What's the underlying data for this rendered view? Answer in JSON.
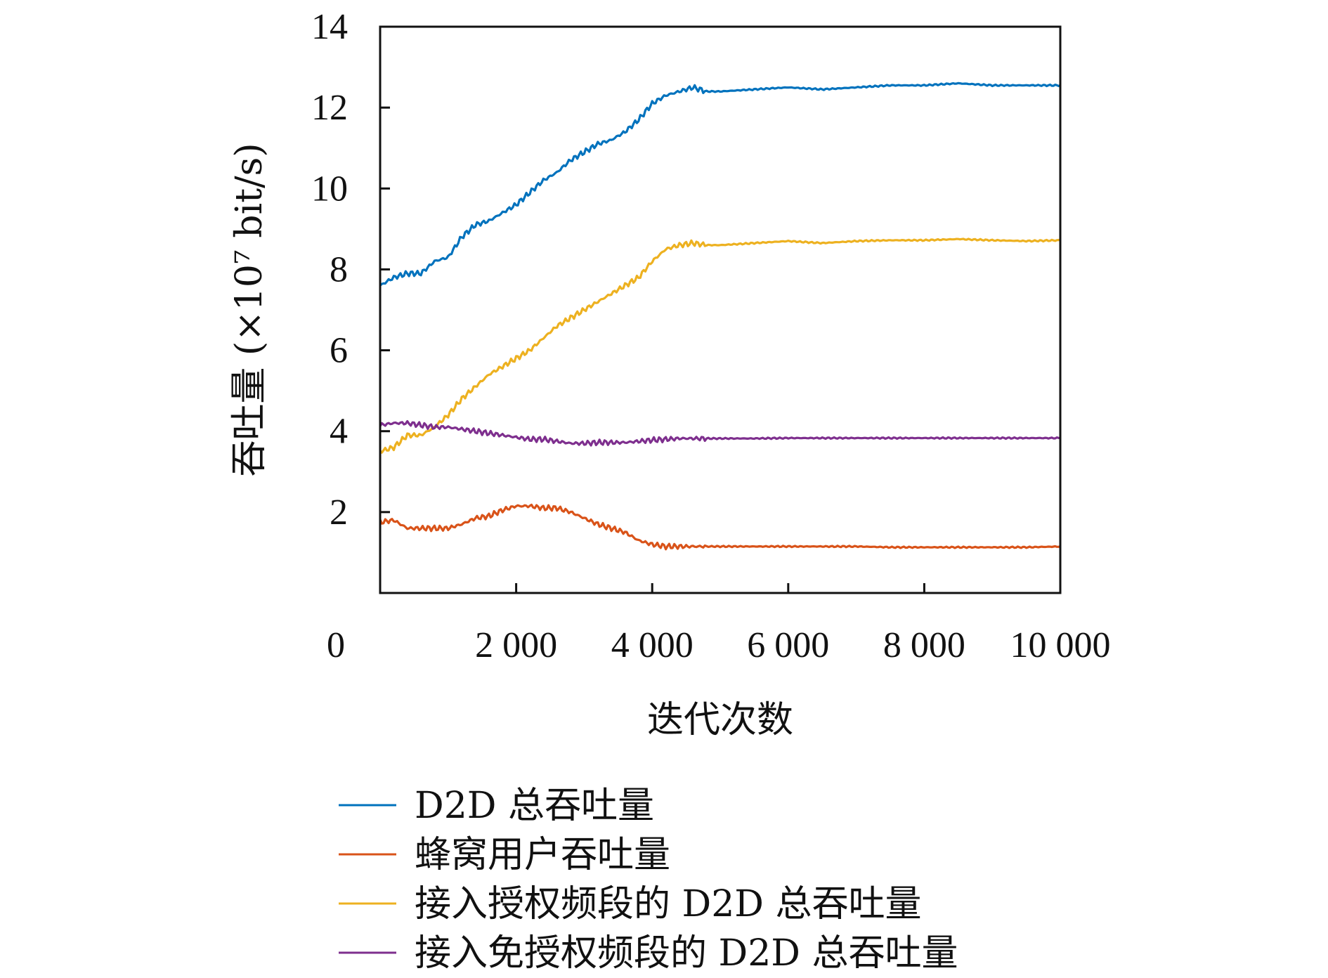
{
  "chart_data": {
    "type": "line",
    "title": "",
    "xlabel": "迭代次数",
    "ylabel": "吞吐量 (×10⁷ bit/s)",
    "xlim": [
      0,
      10000
    ],
    "ylim": [
      0,
      14
    ],
    "x_ticks": [
      0,
      2000,
      4000,
      6000,
      8000,
      10000
    ],
    "x_tick_labels": [
      "0",
      "2 000",
      "4 000",
      "6 000",
      "8 000",
      "10 000"
    ],
    "y_ticks": [
      2,
      4,
      6,
      8,
      10,
      12,
      14
    ],
    "y_tick_labels": [
      "2",
      "4",
      "6",
      "8",
      "10",
      "12",
      "14"
    ],
    "grid": false,
    "legend_position": "below",
    "x": [
      0,
      200,
      400,
      600,
      800,
      1000,
      1200,
      1400,
      1600,
      1800,
      2000,
      2200,
      2400,
      2600,
      2800,
      3000,
      3200,
      3400,
      3600,
      3800,
      4000,
      4200,
      4400,
      4600,
      4800,
      5000,
      5500,
      6000,
      6500,
      7000,
      7500,
      8000,
      8500,
      9000,
      9500,
      10000
    ],
    "series": [
      {
        "name": "D2D 总吞吐量",
        "color": "#0072BD",
        "values": [
          7.6,
          7.8,
          7.9,
          7.9,
          8.2,
          8.3,
          8.8,
          9.1,
          9.2,
          9.4,
          9.6,
          9.9,
          10.2,
          10.4,
          10.7,
          10.9,
          11.1,
          11.2,
          11.4,
          11.7,
          12.1,
          12.3,
          12.4,
          12.5,
          12.4,
          12.4,
          12.45,
          12.5,
          12.45,
          12.5,
          12.55,
          12.55,
          12.6,
          12.55,
          12.55,
          12.55
        ]
      },
      {
        "name": "蜂窝用户吞吐量",
        "color": "#D95319",
        "values": [
          1.75,
          1.8,
          1.6,
          1.6,
          1.6,
          1.6,
          1.7,
          1.85,
          1.9,
          2.05,
          2.15,
          2.15,
          2.1,
          2.1,
          2.0,
          1.85,
          1.7,
          1.6,
          1.5,
          1.3,
          1.2,
          1.15,
          1.15,
          1.15,
          1.15,
          1.15,
          1.15,
          1.15,
          1.15,
          1.15,
          1.13,
          1.13,
          1.13,
          1.13,
          1.13,
          1.15
        ]
      },
      {
        "name": "接入授权频段的 D2D 总吞吐量",
        "color": "#EDB120",
        "values": [
          3.5,
          3.6,
          3.9,
          3.9,
          4.1,
          4.4,
          4.8,
          5.1,
          5.4,
          5.6,
          5.8,
          6.0,
          6.3,
          6.6,
          6.8,
          7.0,
          7.2,
          7.4,
          7.6,
          7.8,
          8.2,
          8.5,
          8.6,
          8.65,
          8.6,
          8.6,
          8.65,
          8.7,
          8.65,
          8.7,
          8.72,
          8.72,
          8.75,
          8.72,
          8.7,
          8.72
        ]
      },
      {
        "name": "接入免授权频段的 D2D 总吞吐量",
        "color": "#7E2F8E",
        "values": [
          4.15,
          4.2,
          4.2,
          4.15,
          4.1,
          4.1,
          4.05,
          4.0,
          3.95,
          3.9,
          3.85,
          3.8,
          3.8,
          3.75,
          3.7,
          3.7,
          3.72,
          3.72,
          3.72,
          3.75,
          3.78,
          3.8,
          3.82,
          3.82,
          3.82,
          3.82,
          3.82,
          3.83,
          3.83,
          3.83,
          3.83,
          3.83,
          3.83,
          3.83,
          3.83,
          3.83
        ]
      }
    ]
  }
}
